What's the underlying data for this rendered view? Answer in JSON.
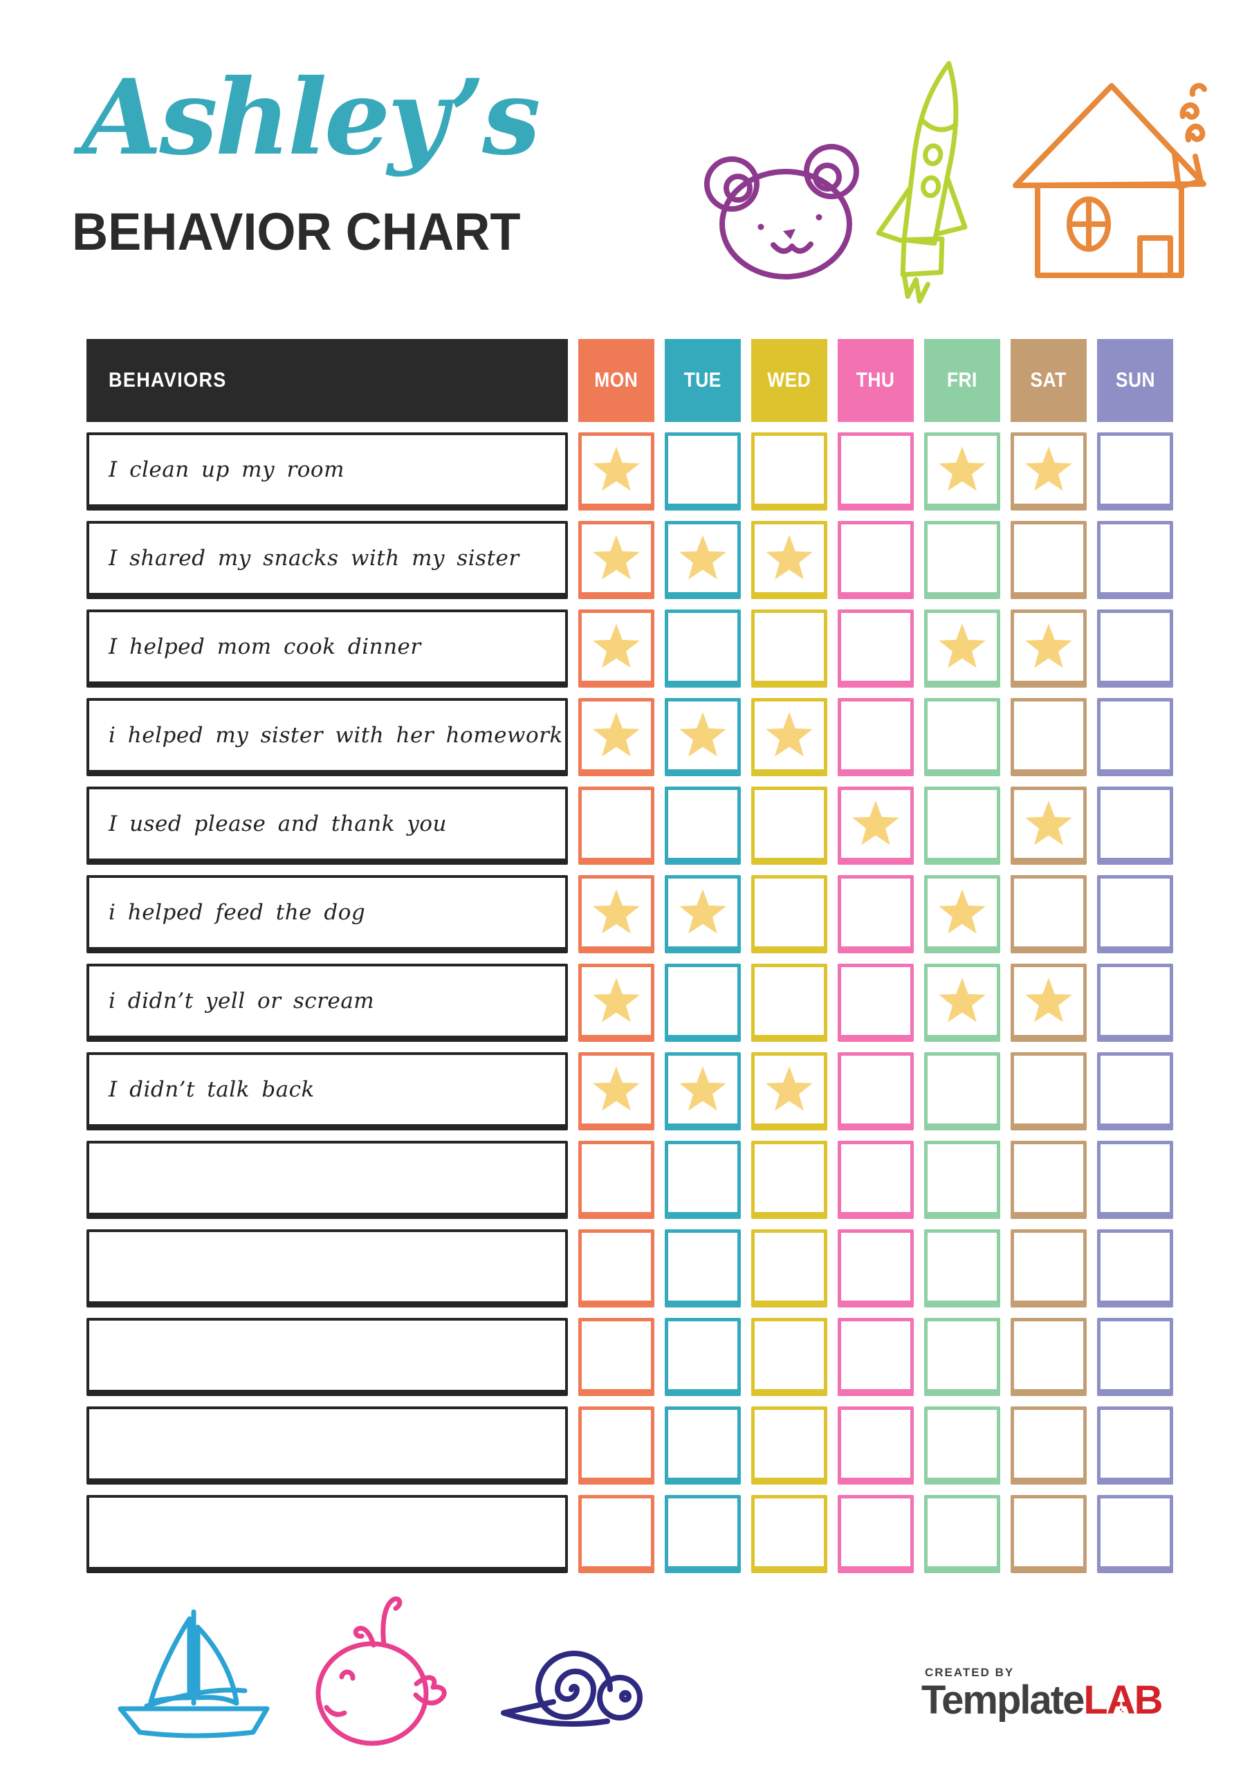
{
  "page": {
    "title_script": "Ashley’s",
    "title_main": "BEHAVIOR CHART",
    "title_script_color": "#38a9ba",
    "title_main_color": "#2b2b2b"
  },
  "decorations": {
    "top": [
      {
        "icon": "bear-doodle",
        "color": "#8d3a8e"
      },
      {
        "icon": "rocket-doodle",
        "color": "#b5d334"
      },
      {
        "icon": "house-doodle",
        "color": "#e8883a"
      }
    ],
    "bottom": [
      {
        "icon": "sailboat-doodle",
        "color": "#2ba3d4"
      },
      {
        "icon": "whale-doodle",
        "color": "#e8408f"
      },
      {
        "icon": "snail-doodle",
        "color": "#2e2a80"
      }
    ]
  },
  "table": {
    "behaviors_header": "BEHAVIORS",
    "header_bg": "#2a2a2a",
    "header_text_color": "#ffffff",
    "star_color": "#f7d37c",
    "days": [
      {
        "label": "MON",
        "color": "#ee7a56"
      },
      {
        "label": "TUE",
        "color": "#35aabc"
      },
      {
        "label": "WED",
        "color": "#ddc32d"
      },
      {
        "label": "THU",
        "color": "#f272b2"
      },
      {
        "label": "FRI",
        "color": "#8fcfa4"
      },
      {
        "label": "SAT",
        "color": "#c49d72"
      },
      {
        "label": "SUN",
        "color": "#8e8fc5"
      }
    ],
    "rows": [
      {
        "label": "I clean up my room",
        "stars": [
          1,
          0,
          0,
          0,
          1,
          1,
          0
        ]
      },
      {
        "label": "I shared my snacks with my sister",
        "stars": [
          1,
          1,
          1,
          0,
          0,
          0,
          0
        ]
      },
      {
        "label": "I helped mom cook dinner",
        "stars": [
          1,
          0,
          0,
          0,
          1,
          1,
          0
        ]
      },
      {
        "label": "i helped my sister with her homework",
        "stars": [
          1,
          1,
          1,
          0,
          0,
          0,
          0
        ]
      },
      {
        "label": "I used please and thank you",
        "stars": [
          0,
          0,
          0,
          1,
          0,
          1,
          0
        ]
      },
      {
        "label": "i helped feed the dog",
        "stars": [
          1,
          1,
          0,
          0,
          1,
          0,
          0
        ]
      },
      {
        "label": "i didn’t yell or scream",
        "stars": [
          1,
          0,
          0,
          0,
          1,
          1,
          0
        ]
      },
      {
        "label": "I didn’t talk back",
        "stars": [
          1,
          1,
          1,
          0,
          0,
          0,
          0
        ]
      },
      {
        "label": "",
        "stars": [
          0,
          0,
          0,
          0,
          0,
          0,
          0
        ]
      },
      {
        "label": "",
        "stars": [
          0,
          0,
          0,
          0,
          0,
          0,
          0
        ]
      },
      {
        "label": "",
        "stars": [
          0,
          0,
          0,
          0,
          0,
          0,
          0
        ]
      },
      {
        "label": "",
        "stars": [
          0,
          0,
          0,
          0,
          0,
          0,
          0
        ]
      },
      {
        "label": "",
        "stars": [
          0,
          0,
          0,
          0,
          0,
          0,
          0
        ]
      }
    ]
  },
  "footer": {
    "credit_small": "CREATED BY",
    "brand_dark": "Template",
    "brand_red": "LAB",
    "brand_red_color": "#d2232a"
  }
}
